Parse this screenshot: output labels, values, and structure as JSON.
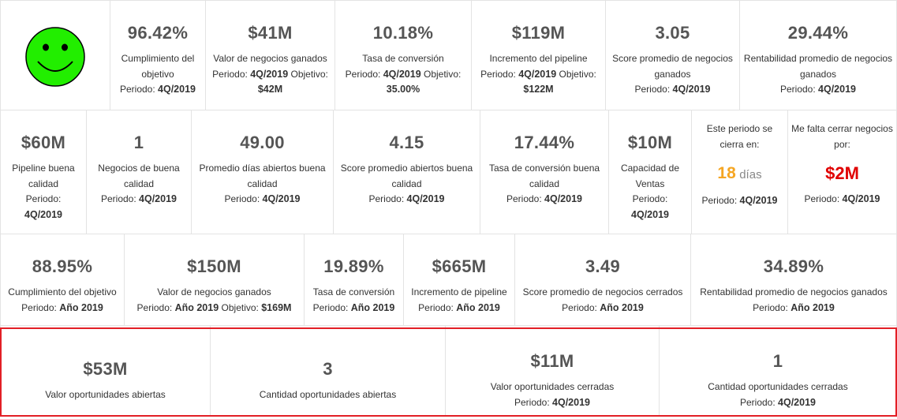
{
  "row1": [
    {
      "value": "96.42%",
      "label": "Cumplimiento del objetivo",
      "period_prefix": "Periodo:",
      "period": "4Q/2019",
      "extra": ""
    },
    {
      "value": "$41M",
      "label": "Valor de negocios ganados",
      "period_prefix": "Periodo:",
      "period": "4Q/2019",
      "extra_prefix": "Objetivo:",
      "extra": "$42M"
    },
    {
      "value": "10.18%",
      "label": "Tasa de conversión",
      "period_prefix": "Periodo:",
      "period": "4Q/2019",
      "extra_prefix": "Objetivo:",
      "extra": "35.00%"
    },
    {
      "value": "$119M",
      "label": "Incremento del pipeline",
      "period_prefix": "Periodo:",
      "period": "4Q/2019",
      "extra_prefix": "Objetivo:",
      "extra": "$122M"
    },
    {
      "value": "3.05",
      "label": "Score promedio de negocios ganados",
      "period_prefix": "Periodo:",
      "period": "4Q/2019"
    },
    {
      "value": "29.44%",
      "label": "Rentabilidad promedio de negocios ganados",
      "period_prefix": "Periodo:",
      "period": "4Q/2019"
    }
  ],
  "row2": [
    {
      "value": "$60M",
      "label": "Pipeline buena calidad",
      "period_prefix": "Periodo:",
      "period": "4Q/2019"
    },
    {
      "value": "1",
      "label": "Negocios de buena calidad",
      "period_prefix": "Periodo:",
      "period": "4Q/2019"
    },
    {
      "value": "49.00",
      "label": "Promedio días abiertos buena calidad",
      "period_prefix": "Periodo:",
      "period": "4Q/2019"
    },
    {
      "value": "4.15",
      "label": "Score promedio abiertos buena calidad",
      "period_prefix": "Periodo:",
      "period": "4Q/2019"
    },
    {
      "value": "17.44%",
      "label": "Tasa de conversión buena calidad",
      "period_prefix": "Periodo:",
      "period": "4Q/2019"
    },
    {
      "value": "$10M",
      "label": "Capacidad de Ventas",
      "period_prefix": "Periodo:",
      "period": "4Q/2019"
    }
  ],
  "closing": {
    "label": "Este periodo se cierra en:",
    "days": "18",
    "days_unit": "días",
    "period_prefix": "Periodo:",
    "period": "4Q/2019"
  },
  "missing": {
    "label": "Me falta cerrar negocios por:",
    "value": "$2M",
    "period_prefix": "Periodo:",
    "period": "4Q/2019"
  },
  "row3": [
    {
      "value": "88.95%",
      "label": "Cumplimiento del objetivo",
      "period_prefix": "Periodo:",
      "period": "Año 2019"
    },
    {
      "value": "$150M",
      "label": "Valor de negocios ganados",
      "period_prefix": "Periodo:",
      "period": "Año 2019",
      "extra_prefix": "Objetivo:",
      "extra": "$169M"
    },
    {
      "value": "19.89%",
      "label": "Tasa de conversión",
      "period_prefix": "Periodo:",
      "period": "Año 2019"
    },
    {
      "value": "$665M",
      "label": "Incremento de pipeline",
      "period_prefix": "Periodo:",
      "period": "Año 2019"
    },
    {
      "value": "3.49",
      "label": "Score promedio de negocios cerrados",
      "period_prefix": "Periodo:",
      "period": "Año 2019"
    },
    {
      "value": "34.89%",
      "label": "Rentabilidad promedio de negocios ganados",
      "period_prefix": "Periodo:",
      "period": "Año 2019"
    }
  ],
  "row4": [
    {
      "value": "$53M",
      "label": "Valor oportunidades abiertas"
    },
    {
      "value": "3",
      "label": "Cantidad oportunidades abiertas"
    },
    {
      "value": "$11M",
      "label": "Valor oportunidades cerradas",
      "period_prefix": "Periodo:",
      "period": "4Q/2019"
    },
    {
      "value": "1",
      "label": "Cantidad oportunidades cerradas",
      "period_prefix": "Periodo:",
      "period": "4Q/2019"
    }
  ],
  "colors": {
    "smiley": "#22ee00",
    "highlight": "#e21f26",
    "orange": "#f5a623",
    "red": "#e00000"
  },
  "icons": {
    "status": "smiley-face-icon"
  }
}
